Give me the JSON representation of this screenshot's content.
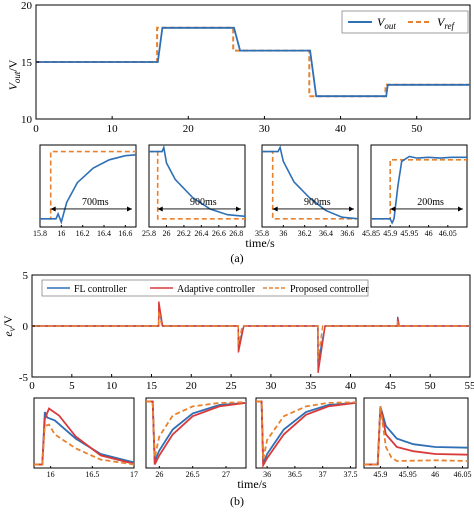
{
  "colors": {
    "blue": "#2f6fb5",
    "red": "#d93a3a",
    "orange": "#e8822e"
  },
  "captions": {
    "a": "(a)",
    "b": "(b)"
  },
  "chart_data": [
    {
      "type": "line",
      "id": "a-main",
      "ylabel": "V_out/V",
      "xlim": [
        0,
        57
      ],
      "ylim": [
        10,
        20
      ],
      "xticks": [
        "0",
        "10",
        "20",
        "30",
        "40",
        "50"
      ],
      "yticks": [
        "10",
        "15",
        "20"
      ],
      "legend": {
        "placement": "top-right",
        "entries": [
          {
            "name": "V_out",
            "label_main": "V",
            "label_sub": "out"
          },
          {
            "name": "V_ref",
            "label_main": "V",
            "label_sub": "ref"
          }
        ]
      },
      "series": [
        {
          "name": "V_ref",
          "color": "orange",
          "style": "dashed",
          "x": [
            0,
            15.9,
            15.9,
            25.9,
            25.9,
            35.9,
            35.9,
            45.9,
            45.9,
            57
          ],
          "y": [
            15,
            15,
            18,
            18,
            16,
            16,
            12,
            12,
            13,
            13
          ]
        },
        {
          "name": "V_out",
          "color": "blue",
          "style": "solid",
          "x": [
            0,
            16.0,
            16.6,
            26.0,
            26.8,
            36.0,
            36.8,
            46.0,
            46.2,
            57
          ],
          "y": [
            15,
            15,
            18,
            18,
            16,
            16,
            12,
            12,
            13,
            13
          ]
        }
      ]
    },
    {
      "type": "line",
      "id": "a-z1",
      "xlim": [
        15.8,
        16.7
      ],
      "xticks": [
        "15.8",
        "16",
        "16.2",
        "16.4",
        "16.6"
      ],
      "annotation": "700ms",
      "series": [
        {
          "name": "V_ref",
          "color": "orange",
          "x": [
            15.8,
            15.9,
            15.9,
            16.7
          ],
          "y": [
            0.1,
            0.1,
            0.92,
            0.92
          ]
        },
        {
          "name": "V_out",
          "color": "blue",
          "x": [
            15.8,
            15.95,
            15.97,
            16.0,
            16.05,
            16.15,
            16.3,
            16.45,
            16.6,
            16.7
          ],
          "y": [
            0.1,
            0.1,
            0.16,
            0.06,
            0.3,
            0.54,
            0.72,
            0.82,
            0.87,
            0.88
          ]
        }
      ]
    },
    {
      "type": "line",
      "id": "a-z2",
      "xlim": [
        25.8,
        26.9
      ],
      "xticks": [
        "25.8",
        "26",
        "26.2",
        "26.4",
        "26.6",
        "26.8"
      ],
      "annotation": "900ms",
      "series": [
        {
          "name": "V_ref",
          "color": "orange",
          "x": [
            25.8,
            25.9,
            25.9,
            26.9
          ],
          "y": [
            0.92,
            0.92,
            0.1,
            0.1
          ]
        },
        {
          "name": "V_out",
          "color": "blue",
          "x": [
            25.8,
            25.95,
            25.97,
            26.0,
            26.1,
            26.3,
            26.5,
            26.7,
            26.9
          ],
          "y": [
            0.92,
            0.92,
            0.97,
            0.78,
            0.58,
            0.36,
            0.22,
            0.15,
            0.13
          ]
        }
      ]
    },
    {
      "type": "line",
      "id": "a-z3",
      "xlim": [
        35.8,
        36.7
      ],
      "xticks": [
        "35.8",
        "36",
        "36.2",
        "36.4",
        "36.6"
      ],
      "annotation": "900ms",
      "series": [
        {
          "name": "V_ref",
          "color": "orange",
          "x": [
            35.8,
            35.9,
            35.9,
            36.7
          ],
          "y": [
            0.92,
            0.92,
            0.1,
            0.1
          ]
        },
        {
          "name": "V_out",
          "color": "blue",
          "x": [
            35.8,
            35.95,
            35.97,
            36.0,
            36.1,
            36.25,
            36.4,
            36.55,
            36.7
          ],
          "y": [
            0.92,
            0.92,
            0.97,
            0.8,
            0.55,
            0.35,
            0.2,
            0.12,
            0.1
          ]
        }
      ]
    },
    {
      "type": "line",
      "id": "a-z4",
      "xlim": [
        45.85,
        46.1
      ],
      "xticks": [
        "45.85",
        "45.9",
        "45.95",
        "46",
        "46.05"
      ],
      "annotation": "200ms",
      "series": [
        {
          "name": "V_ref",
          "color": "orange",
          "x": [
            45.85,
            45.9,
            45.9,
            46.1
          ],
          "y": [
            0.1,
            0.1,
            0.82,
            0.82
          ]
        },
        {
          "name": "V_out",
          "color": "blue",
          "x": [
            45.85,
            45.9,
            45.905,
            45.91,
            45.92,
            45.93,
            45.95,
            45.97,
            46.0,
            46.03,
            46.06,
            46.1
          ],
          "y": [
            0.1,
            0.1,
            0.05,
            0.1,
            0.5,
            0.8,
            0.86,
            0.84,
            0.85,
            0.84,
            0.85,
            0.85
          ]
        }
      ]
    },
    {
      "type": "line",
      "id": "b-main",
      "ylabel": "e_v/V",
      "xlim": [
        0,
        55
      ],
      "ylim": [
        -5,
        5
      ],
      "xticks": [
        "0",
        "5",
        "10",
        "15",
        "20",
        "25",
        "30",
        "35",
        "40",
        "45",
        "50",
        "55"
      ],
      "yticks": [
        "-5",
        "0",
        "5"
      ],
      "legend": {
        "placement": "top",
        "entries": [
          {
            "name": "FL controller",
            "color": "blue",
            "style": "solid"
          },
          {
            "name": "Adaptive controller",
            "color": "red",
            "style": "solid"
          },
          {
            "name": "Proposed controller",
            "color": "orange",
            "style": "dashed"
          }
        ]
      },
      "series": [
        {
          "name": "FL controller",
          "color": "blue",
          "x": [
            0,
            15.9,
            15.92,
            16.4,
            25.9,
            25.92,
            26.6,
            35.9,
            35.92,
            36.8,
            45.9,
            45.92,
            46.1,
            55
          ],
          "y": [
            0,
            0,
            1.7,
            0,
            0,
            -2.0,
            0,
            0,
            -3.6,
            0,
            0,
            0.9,
            0,
            0
          ]
        },
        {
          "name": "Adaptive controller",
          "color": "red",
          "x": [
            0,
            15.9,
            15.92,
            16.4,
            25.9,
            25.92,
            26.6,
            35.9,
            35.92,
            36.8,
            45.9,
            45.92,
            46.1,
            55
          ],
          "y": [
            0,
            0,
            2.4,
            0,
            0,
            -2.6,
            0,
            0,
            -4.6,
            0,
            0,
            0.8,
            0,
            0
          ]
        },
        {
          "name": "Proposed controller",
          "color": "orange",
          "x": [
            0,
            15.9,
            15.92,
            16.3,
            25.9,
            25.92,
            26.4,
            35.9,
            35.92,
            36.5,
            45.9,
            45.92,
            46.0,
            55
          ],
          "y": [
            0,
            0,
            1.5,
            0,
            0,
            -1.8,
            0,
            0,
            -3.2,
            0,
            0,
            0.5,
            0,
            0
          ]
        }
      ]
    },
    {
      "type": "line",
      "id": "b-z1",
      "xlim": [
        15.8,
        17.0
      ],
      "xticks": [
        "16",
        "16.5",
        "17"
      ],
      "series": [
        {
          "name": "FL controller",
          "color": "blue",
          "x": [
            15.8,
            15.9,
            15.93,
            15.96,
            16.05,
            16.3,
            16.6,
            17.0
          ],
          "y": [
            0.05,
            0.05,
            0.8,
            0.72,
            0.68,
            0.42,
            0.2,
            0.08
          ]
        },
        {
          "name": "Adaptive controller",
          "color": "red",
          "x": [
            15.8,
            15.9,
            15.93,
            15.98,
            16.1,
            16.3,
            16.6,
            17.0
          ],
          "y": [
            0.05,
            0.05,
            0.7,
            0.85,
            0.75,
            0.45,
            0.18,
            0.06
          ]
        },
        {
          "name": "Proposed controller",
          "color": "orange",
          "x": [
            15.8,
            15.9,
            15.93,
            15.98,
            16.05,
            16.3,
            16.6,
            17.0
          ],
          "y": [
            0.05,
            0.05,
            0.6,
            0.62,
            0.48,
            0.28,
            0.12,
            0.05
          ]
        }
      ]
    },
    {
      "type": "line",
      "id": "b-z2",
      "xlim": [
        25.8,
        27.3
      ],
      "xticks": [
        "26",
        "26.5",
        "27"
      ],
      "series": [
        {
          "name": "FL controller",
          "color": "blue",
          "x": [
            25.8,
            25.9,
            25.93,
            26.0,
            26.2,
            26.5,
            26.9,
            27.3
          ],
          "y": [
            0.95,
            0.95,
            0.1,
            0.25,
            0.55,
            0.78,
            0.9,
            0.93
          ]
        },
        {
          "name": "Adaptive controller",
          "color": "red",
          "x": [
            25.8,
            25.9,
            25.93,
            26.0,
            26.2,
            26.5,
            26.9,
            27.3
          ],
          "y": [
            0.95,
            0.95,
            0.05,
            0.18,
            0.48,
            0.74,
            0.88,
            0.93
          ]
        },
        {
          "name": "Proposed controller",
          "color": "orange",
          "x": [
            25.8,
            25.9,
            25.93,
            26.0,
            26.2,
            26.5,
            26.9,
            27.3
          ],
          "y": [
            0.95,
            0.95,
            0.15,
            0.45,
            0.75,
            0.88,
            0.93,
            0.94
          ]
        }
      ]
    },
    {
      "type": "line",
      "id": "b-z3",
      "xlim": [
        35.8,
        37.6
      ],
      "xticks": [
        "36",
        "36.5",
        "37",
        "37.5"
      ],
      "series": [
        {
          "name": "FL controller",
          "color": "blue",
          "x": [
            35.8,
            35.9,
            35.93,
            36.0,
            36.3,
            36.7,
            37.1,
            37.6
          ],
          "y": [
            0.95,
            0.95,
            0.06,
            0.2,
            0.55,
            0.8,
            0.9,
            0.93
          ]
        },
        {
          "name": "Adaptive controller",
          "color": "red",
          "x": [
            35.8,
            35.9,
            35.93,
            36.0,
            36.3,
            36.7,
            37.1,
            37.6
          ],
          "y": [
            0.95,
            0.95,
            0.04,
            0.14,
            0.48,
            0.76,
            0.88,
            0.93
          ]
        },
        {
          "name": "Proposed controller",
          "color": "orange",
          "x": [
            35.8,
            35.9,
            35.93,
            36.0,
            36.3,
            36.7,
            37.1,
            37.6
          ],
          "y": [
            0.95,
            0.95,
            0.12,
            0.4,
            0.74,
            0.88,
            0.93,
            0.94
          ]
        }
      ]
    },
    {
      "type": "line",
      "id": "b-z4",
      "xlim": [
        45.87,
        46.06
      ],
      "xticks": [
        "45.9",
        "45.95",
        "46",
        "46.05"
      ],
      "series": [
        {
          "name": "FL controller",
          "color": "blue",
          "x": [
            45.87,
            45.895,
            45.9,
            45.91,
            45.93,
            45.96,
            46.0,
            46.06
          ],
          "y": [
            0.05,
            0.05,
            0.88,
            0.6,
            0.42,
            0.34,
            0.3,
            0.29
          ]
        },
        {
          "name": "Adaptive controller",
          "color": "red",
          "x": [
            45.87,
            45.895,
            45.9,
            45.91,
            45.93,
            45.96,
            46.0,
            46.06
          ],
          "y": [
            0.05,
            0.05,
            0.88,
            0.48,
            0.3,
            0.24,
            0.2,
            0.19
          ]
        },
        {
          "name": "Proposed controller",
          "color": "orange",
          "x": [
            45.87,
            45.895,
            45.9,
            45.91,
            45.92,
            45.93,
            46.0,
            46.06
          ],
          "y": [
            0.05,
            0.05,
            0.88,
            0.3,
            0.15,
            0.1,
            0.11,
            0.1
          ]
        }
      ]
    }
  ],
  "axes_text": {
    "time": "time/s",
    "ylabel_a_main": "V",
    "ylabel_a_sub": "out",
    "ylabel_a_tail": "/V",
    "ylabel_b_main": "e",
    "ylabel_b_sub": "v",
    "ylabel_b_tail": "/V"
  }
}
